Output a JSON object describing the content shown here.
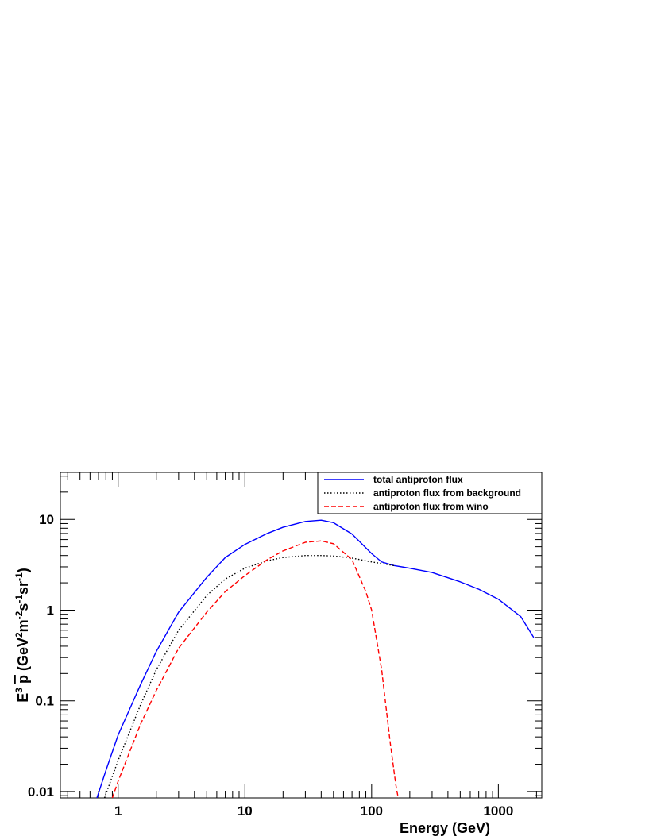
{
  "chart_data": {
    "type": "line",
    "title": "",
    "xlabel": "Energy (GeV)",
    "ylabel": "E^3 p (GeV^2 m^-2 s^-1 sr^-1)",
    "ylabel_parts": {
      "base": "E",
      "base_exp": "3",
      "particle": "p",
      "open": "(GeV",
      "gev_exp": "2",
      "m": "m",
      "m_exp": "-2",
      "s": "s",
      "s_exp": "-1",
      "sr": "sr",
      "sr_exp": "-1",
      "close": ")"
    },
    "x_scale": "log",
    "y_scale": "log",
    "xlim": [
      0.35,
      2200
    ],
    "ylim": [
      0.0085,
      33
    ],
    "x_ticks": [
      {
        "value": 1,
        "label": "1"
      },
      {
        "value": 10,
        "label": "10"
      },
      {
        "value": 100,
        "label": "100"
      },
      {
        "value": 1000,
        "label": "1000"
      }
    ],
    "y_ticks": [
      {
        "value": 0.01,
        "label": "0.01"
      },
      {
        "value": 0.1,
        "label": "0.1"
      },
      {
        "value": 1,
        "label": "1"
      },
      {
        "value": 10,
        "label": "10"
      }
    ],
    "grid": false,
    "legend_position": "top-right",
    "series": [
      {
        "name": "total antiproton flux",
        "color": "#0000ff",
        "style": "solid",
        "points": [
          [
            0.68,
            0.0085
          ],
          [
            0.8,
            0.017
          ],
          [
            1.0,
            0.042
          ],
          [
            1.5,
            0.15
          ],
          [
            2.0,
            0.35
          ],
          [
            3.0,
            0.95
          ],
          [
            5.0,
            2.3
          ],
          [
            7.0,
            3.8
          ],
          [
            10.0,
            5.3
          ],
          [
            15.0,
            7.0
          ],
          [
            20.0,
            8.2
          ],
          [
            30.0,
            9.5
          ],
          [
            40.0,
            9.8
          ],
          [
            50.0,
            9.2
          ],
          [
            70.0,
            6.9
          ],
          [
            100.0,
            4.2
          ],
          [
            120.0,
            3.4
          ],
          [
            150.0,
            3.1
          ],
          [
            200.0,
            2.9
          ],
          [
            300.0,
            2.6
          ],
          [
            500.0,
            2.05
          ],
          [
            700.0,
            1.7
          ],
          [
            1000.0,
            1.32
          ],
          [
            1500.0,
            0.85
          ],
          [
            1900.0,
            0.5
          ]
        ]
      },
      {
        "name": "antiproton flux from background",
        "color": "#000000",
        "style": "dotted",
        "points": [
          [
            0.78,
            0.0085
          ],
          [
            1.0,
            0.022
          ],
          [
            1.5,
            0.09
          ],
          [
            2.0,
            0.22
          ],
          [
            3.0,
            0.6
          ],
          [
            5.0,
            1.45
          ],
          [
            7.0,
            2.2
          ],
          [
            10.0,
            2.9
          ],
          [
            15.0,
            3.5
          ],
          [
            20.0,
            3.8
          ],
          [
            30.0,
            4.0
          ],
          [
            40.0,
            4.0
          ],
          [
            50.0,
            3.95
          ],
          [
            70.0,
            3.75
          ],
          [
            100.0,
            3.4
          ],
          [
            150.0,
            3.1
          ]
        ]
      },
      {
        "name": "antiproton flux from wino",
        "color": "#ff0000",
        "style": "dashed",
        "points": [
          [
            0.9,
            0.0085
          ],
          [
            1.0,
            0.013
          ],
          [
            1.5,
            0.055
          ],
          [
            2.0,
            0.13
          ],
          [
            3.0,
            0.38
          ],
          [
            5.0,
            0.95
          ],
          [
            7.0,
            1.6
          ],
          [
            10.0,
            2.4
          ],
          [
            15.0,
            3.6
          ],
          [
            20.0,
            4.5
          ],
          [
            30.0,
            5.6
          ],
          [
            40.0,
            5.8
          ],
          [
            50.0,
            5.4
          ],
          [
            70.0,
            3.6
          ],
          [
            90.0,
            1.6
          ],
          [
            100.0,
            1.0
          ],
          [
            120.0,
            0.22
          ],
          [
            140.0,
            0.035
          ],
          [
            155.0,
            0.012
          ],
          [
            162.0,
            0.0085
          ]
        ]
      }
    ]
  }
}
